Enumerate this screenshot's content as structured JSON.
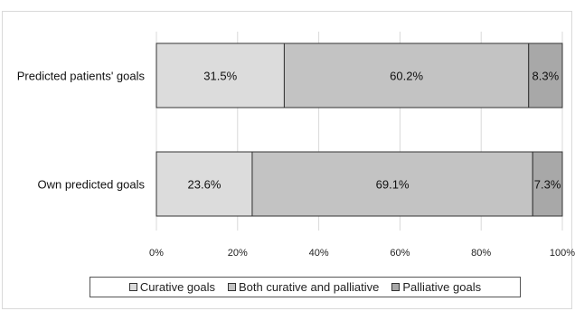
{
  "chart_data": {
    "type": "bar",
    "orientation": "horizontal",
    "stacked": true,
    "categories": [
      "Predicted patients' goals",
      "Own predicted goals"
    ],
    "series": [
      {
        "name": "Curative goals",
        "values": [
          31.5,
          23.6
        ],
        "labels": [
          "31.5%",
          "23.6%"
        ],
        "color": "#dcdcdc"
      },
      {
        "name": "Both curative and palliative",
        "values": [
          60.2,
          69.1
        ],
        "labels": [
          "60.2%",
          "69.1%"
        ],
        "color": "#c3c3c3"
      },
      {
        "name": "Palliative goals",
        "values": [
          8.3,
          7.3
        ],
        "labels": [
          "8.3%",
          "7.3%"
        ],
        "color": "#a8a8a8"
      }
    ],
    "xlim": [
      0,
      100
    ],
    "x_ticks": [
      "0%",
      "20%",
      "40%",
      "60%",
      "80%",
      "100%"
    ],
    "grid": true,
    "legend_position": "bottom"
  }
}
